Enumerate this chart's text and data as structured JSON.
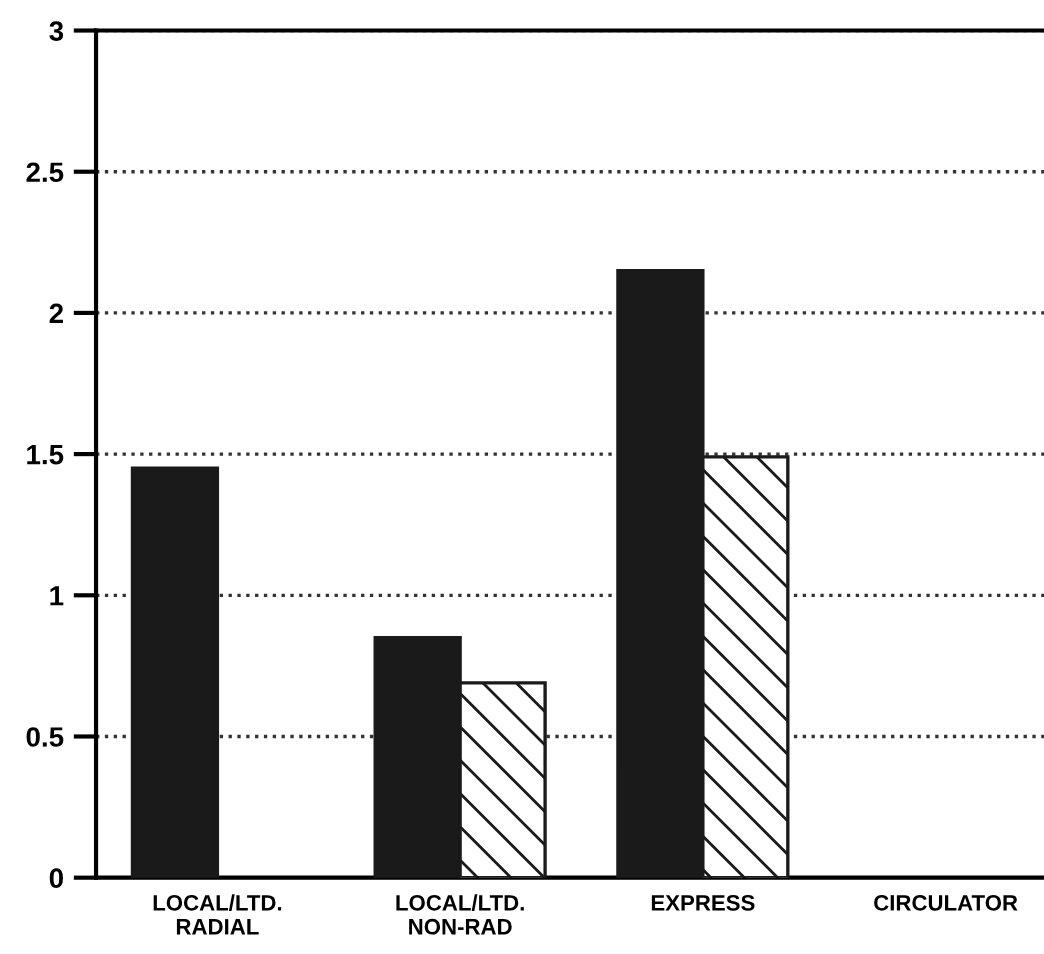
{
  "chart_data": {
    "type": "bar",
    "categories": [
      "LOCAL/LTD.\nRADIAL",
      "LOCAL/LTD.\nNON-RAD",
      "EXPRESS",
      "CIRCULATOR"
    ],
    "series": [
      {
        "color": "#1a1a1a",
        "values": [
          1.45,
          0.85,
          2.15,
          null
        ]
      },
      {
        "color": "#1a1a1a",
        "values": [
          null,
          0.69,
          1.49,
          null
        ]
      }
    ],
    "ylim": [
      0,
      3
    ],
    "yticks": [
      0,
      0.5,
      1,
      1.5,
      2,
      2.5,
      3
    ],
    "grid": "y",
    "legend": false
  }
}
